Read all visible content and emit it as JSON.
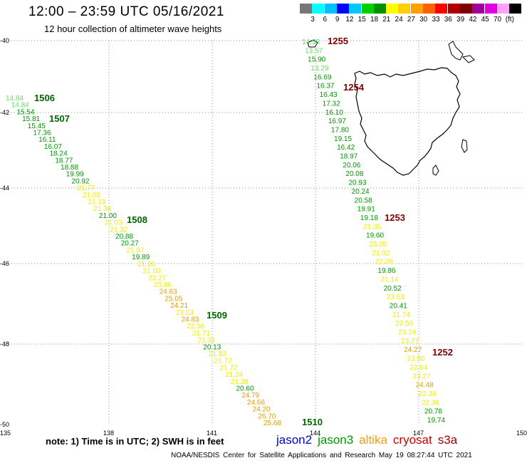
{
  "header": {
    "title": "12:00 – 23:59 UTC 05/16/2021",
    "subtitle": "12 hour collection of altimeter wave heights"
  },
  "colorbar": {
    "colors": [
      "#777777",
      "#00ffff",
      "#00bfff",
      "#0000ff",
      "#00c8ff",
      "#00d000",
      "#009000",
      "#ffff00",
      "#ffd000",
      "#ffa000",
      "#ff6000",
      "#ff0000",
      "#b00000",
      "#800000",
      "#a000a0",
      "#e000e0",
      "#ffa0ff",
      "#000000"
    ],
    "ticks": [
      "3",
      "6",
      "9",
      "12",
      "15",
      "18",
      "21",
      "24",
      "27",
      "30",
      "33",
      "36",
      "39",
      "42",
      "45",
      "70",
      "(ft)"
    ]
  },
  "axes": {
    "lat_labels": [
      "-40",
      "-42",
      "-44",
      "-46",
      "-48",
      "-50"
    ],
    "lon_labels": [
      "135",
      "138",
      "141",
      "144",
      "147",
      "150"
    ]
  },
  "passes": [
    {
      "id": "1506",
      "color": "#006600"
    },
    {
      "id": "1507",
      "color": "#006600"
    },
    {
      "id": "1508",
      "color": "#006600"
    },
    {
      "id": "1509",
      "color": "#006600"
    },
    {
      "id": "1510",
      "color": "#006600"
    },
    {
      "id": "1255",
      "color": "#800000"
    },
    {
      "id": "1254",
      "color": "#800000"
    },
    {
      "id": "1253",
      "color": "#800000"
    },
    {
      "id": "1252",
      "color": "#800000"
    }
  ],
  "track_west": [
    {
      "v": "14.84",
      "c": "#66dd66"
    },
    {
      "v": "14.84",
      "c": "#66dd66"
    },
    {
      "v": "15.54",
      "c": "#009900"
    },
    {
      "v": "15.81",
      "c": "#009900"
    },
    {
      "v": "15.45",
      "c": "#009900"
    },
    {
      "v": "17.36",
      "c": "#009900"
    },
    {
      "v": "16.11",
      "c": "#009900"
    },
    {
      "v": "16.07",
      "c": "#009900"
    },
    {
      "v": "18.24",
      "c": "#009900"
    },
    {
      "v": "18.77",
      "c": "#009900"
    },
    {
      "v": "18.88",
      "c": "#009900"
    },
    {
      "v": "19.99",
      "c": "#009900"
    },
    {
      "v": "20.92",
      "c": "#009900"
    },
    {
      "v": "21.77",
      "c": "#eeee00"
    },
    {
      "v": "21.03",
      "c": "#eeee00"
    },
    {
      "v": "21.19",
      "c": "#eeee00"
    },
    {
      "v": "21.38",
      "c": "#eeee00"
    },
    {
      "v": "21.00",
      "c": "#009900"
    },
    {
      "v": "21.03",
      "c": "#eeee00"
    },
    {
      "v": "21.32",
      "c": "#eeee00"
    },
    {
      "v": "20.88",
      "c": "#009900"
    },
    {
      "v": "20.27",
      "c": "#009900"
    },
    {
      "v": "21.97",
      "c": "#eeee00"
    },
    {
      "v": "19.89",
      "c": "#009900"
    },
    {
      "v": "21.26",
      "c": "#eeee00"
    },
    {
      "v": "21.00",
      "c": "#eeee00"
    },
    {
      "v": "23.27",
      "c": "#eeee00"
    },
    {
      "v": "23.86",
      "c": "#eeee00"
    },
    {
      "v": "24.63",
      "c": "#e0a000"
    },
    {
      "v": "25.05",
      "c": "#e0a000"
    },
    {
      "v": "24.21",
      "c": "#e0a000"
    },
    {
      "v": "23.03",
      "c": "#eeee00"
    },
    {
      "v": "24.83",
      "c": "#e0a000"
    },
    {
      "v": "22.56",
      "c": "#eeee00"
    },
    {
      "v": "21.71",
      "c": "#eeee00"
    },
    {
      "v": "21.31",
      "c": "#eeee00"
    },
    {
      "v": "20.13",
      "c": "#009900"
    },
    {
      "v": "21.83",
      "c": "#eeee00"
    },
    {
      "v": "21.72",
      "c": "#eeee00"
    },
    {
      "v": "21.72",
      "c": "#eeee00"
    },
    {
      "v": "21.24",
      "c": "#eeee00"
    },
    {
      "v": "21.38",
      "c": "#eeee00"
    },
    {
      "v": "20.60",
      "c": "#009900"
    },
    {
      "v": "24.79",
      "c": "#e0a000"
    },
    {
      "v": "24.66",
      "c": "#e0a000"
    },
    {
      "v": "24.20",
      "c": "#e0a000"
    },
    {
      "v": "26.70",
      "c": "#e0a000"
    },
    {
      "v": "25.68",
      "c": "#e0a000"
    }
  ],
  "track_east": [
    {
      "v": "14.95",
      "c": "#66dd66"
    },
    {
      "v": "13.57",
      "c": "#66dd66"
    },
    {
      "v": "15.90",
      "c": "#009900"
    },
    {
      "v": "13.29",
      "c": "#66dd66"
    },
    {
      "v": "16.69",
      "c": "#009900"
    },
    {
      "v": "16.37",
      "c": "#009900"
    },
    {
      "v": "16.43",
      "c": "#009900"
    },
    {
      "v": "17.32",
      "c": "#009900"
    },
    {
      "v": "16.10",
      "c": "#009900"
    },
    {
      "v": "16.97",
      "c": "#009900"
    },
    {
      "v": "17.80",
      "c": "#009900"
    },
    {
      "v": "19.15",
      "c": "#009900"
    },
    {
      "v": "16.42",
      "c": "#009900"
    },
    {
      "v": "18.97",
      "c": "#009900"
    },
    {
      "v": "20.06",
      "c": "#009900"
    },
    {
      "v": "20.08",
      "c": "#009900"
    },
    {
      "v": "20.93",
      "c": "#009900"
    },
    {
      "v": "20.24",
      "c": "#009900"
    },
    {
      "v": "20.58",
      "c": "#009900"
    },
    {
      "v": "19.91",
      "c": "#009900"
    },
    {
      "v": "19.18",
      "c": "#009900"
    },
    {
      "v": "21.35",
      "c": "#eeee00"
    },
    {
      "v": "19.60",
      "c": "#009900"
    },
    {
      "v": "23.05",
      "c": "#eeee00"
    },
    {
      "v": "21.02",
      "c": "#eeee00"
    },
    {
      "v": "22.09",
      "c": "#eeee00"
    },
    {
      "v": "19.86",
      "c": "#009900"
    },
    {
      "v": "21.14",
      "c": "#eeee00"
    },
    {
      "v": "20.52",
      "c": "#009900"
    },
    {
      "v": "23.63",
      "c": "#eeee00"
    },
    {
      "v": "20.41",
      "c": "#009900"
    },
    {
      "v": "21.74",
      "c": "#eeee00"
    },
    {
      "v": "22.50",
      "c": "#eeee00"
    },
    {
      "v": "23.24",
      "c": "#eeee00"
    },
    {
      "v": "23.77",
      "c": "#eeee00"
    },
    {
      "v": "24.27",
      "c": "#e0a000"
    },
    {
      "v": "23.90",
      "c": "#eeee00"
    },
    {
      "v": "22.64",
      "c": "#eeee00"
    },
    {
      "v": "23.27",
      "c": "#eeee00"
    },
    {
      "v": "24.48",
      "c": "#e0a000"
    },
    {
      "v": "22.39",
      "c": "#eeee00"
    },
    {
      "v": "22.38",
      "c": "#eeee00"
    },
    {
      "v": "20.78",
      "c": "#009900"
    },
    {
      "v": "19.74",
      "c": "#009900"
    }
  ],
  "note": "note: 1) Time is in UTC; 2) SWH is in feet",
  "legend": [
    {
      "name": "jason2",
      "color": "#0000cc"
    },
    {
      "name": "jason3",
      "color": "#009900"
    },
    {
      "name": "altika",
      "color": "#ff9900"
    },
    {
      "name": "cryosat",
      "color": "#cc0000"
    },
    {
      "name": "s3a",
      "color": "#990000"
    }
  ],
  "footer": "NOAA/NESDIS Center for Satellite Applications and Research     May 19 08:27:44 UTC 2021"
}
